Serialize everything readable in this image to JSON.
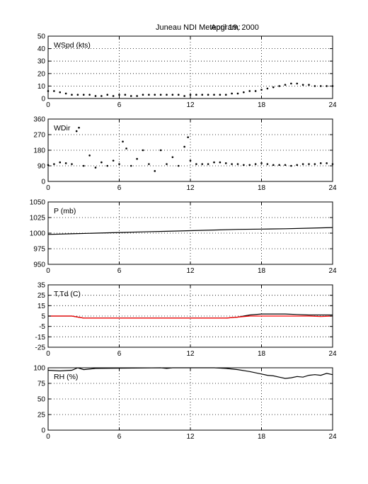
{
  "figure": {
    "title": "Juneau NDI Meteogram:",
    "date": "April 19, 2000"
  },
  "chart_data": [
    {
      "type": "scatter",
      "label": "WSpd (kts)",
      "xlim": [
        0,
        24
      ],
      "ylim": [
        0,
        50
      ],
      "x_ticks": [
        0,
        6,
        12,
        18,
        24
      ],
      "y_ticks": [
        0,
        10,
        20,
        30,
        40,
        50
      ],
      "grid": true,
      "series": [
        {
          "color": "#000000",
          "x": [
            0,
            0.5,
            1,
            1.5,
            2,
            2.5,
            3,
            3.5,
            4,
            4.5,
            5,
            5.5,
            6,
            6.5,
            7,
            7.5,
            8,
            8.5,
            9,
            9.5,
            10,
            10.5,
            11,
            11.5,
            12,
            12.5,
            13,
            13.5,
            14,
            14.5,
            15,
            15.5,
            16,
            16.5,
            17,
            17.5,
            18,
            18.5,
            19,
            19.5,
            20,
            20.5,
            21,
            21.5,
            22,
            22.5,
            23,
            23.5,
            24
          ],
          "y": [
            6,
            6,
            5,
            4,
            3,
            3,
            3,
            3,
            2,
            2,
            3,
            2,
            3,
            3,
            2,
            2,
            3,
            3,
            3,
            3,
            3,
            3,
            3,
            2,
            3,
            3,
            3,
            3,
            3,
            3,
            3,
            4,
            4,
            5,
            6,
            6,
            7,
            8,
            9,
            10,
            11,
            12,
            12,
            11,
            11,
            10,
            10,
            10,
            10
          ]
        }
      ]
    },
    {
      "type": "scatter",
      "label": "WDir",
      "xlim": [
        0,
        24
      ],
      "ylim": [
        0,
        360
      ],
      "x_ticks": [
        0,
        6,
        12,
        18,
        24
      ],
      "y_ticks": [
        0,
        90,
        180,
        270,
        360
      ],
      "grid": true,
      "series": [
        {
          "color": "#000000",
          "x": [
            0,
            0.5,
            1,
            1.5,
            2,
            2.4,
            2.6,
            3,
            3.5,
            4,
            4.5,
            5,
            5.5,
            6,
            6.3,
            6.6,
            7,
            7.5,
            8,
            8.5,
            9,
            9.5,
            10,
            10.5,
            11,
            11.5,
            11.8,
            12,
            12.5,
            13,
            13.5,
            14,
            14.5,
            15,
            15.5,
            16,
            16.5,
            17,
            17.5,
            18,
            18.5,
            19,
            19.5,
            20,
            20.5,
            21,
            21.5,
            22,
            22.5,
            23,
            23.5,
            24
          ],
          "y": [
            95,
            100,
            110,
            105,
            100,
            290,
            310,
            90,
            150,
            80,
            110,
            90,
            120,
            100,
            230,
            190,
            90,
            130,
            180,
            100,
            60,
            180,
            100,
            140,
            90,
            200,
            255,
            120,
            100,
            100,
            100,
            110,
            110,
            105,
            100,
            100,
            95,
            95,
            100,
            105,
            100,
            95,
            95,
            95,
            90,
            95,
            100,
            100,
            100,
            105,
            105,
            100
          ]
        }
      ]
    },
    {
      "type": "line",
      "label": "P (mb)",
      "xlim": [
        0,
        24
      ],
      "ylim": [
        950,
        1050
      ],
      "x_ticks": [
        0,
        6,
        12,
        18,
        24
      ],
      "y_ticks": [
        950,
        975,
        1000,
        1025,
        1050
      ],
      "grid": true,
      "series": [
        {
          "color": "#000000",
          "x": [
            0,
            2,
            4,
            6,
            8,
            10,
            12,
            14,
            16,
            18,
            20,
            22,
            24
          ],
          "y": [
            998,
            999,
            1000,
            1001,
            1002,
            1003,
            1004,
            1005,
            1006,
            1006.5,
            1007,
            1008,
            1009
          ]
        }
      ]
    },
    {
      "type": "line",
      "label": "T,Td (C)",
      "xlim": [
        0,
        24
      ],
      "ylim": [
        -25,
        35
      ],
      "x_ticks": [
        0,
        6,
        12,
        18,
        24
      ],
      "y_ticks": [
        -25,
        -15,
        -5,
        5,
        15,
        25,
        35
      ],
      "grid": true,
      "series": [
        {
          "color": "#000000",
          "x": [
            0,
            1,
            2,
            3,
            4,
            6,
            8,
            10,
            12,
            14,
            15,
            16,
            17,
            18,
            19,
            20,
            21,
            22,
            23,
            24
          ],
          "y": [
            5,
            5,
            5,
            3,
            3,
            3,
            3,
            3,
            3,
            3,
            3,
            4,
            6,
            7,
            7,
            7,
            6.5,
            6,
            6,
            6
          ]
        },
        {
          "color": "#ff0000",
          "x": [
            0,
            1,
            2,
            3,
            4,
            6,
            8,
            10,
            12,
            14,
            15,
            16,
            17,
            18,
            19,
            20,
            21,
            22,
            23,
            24
          ],
          "y": [
            5,
            5,
            5,
            3,
            3,
            3,
            3,
            3,
            3,
            3,
            3,
            4,
            5,
            5,
            5,
            5,
            5,
            5,
            4.5,
            5
          ]
        }
      ]
    },
    {
      "type": "line",
      "label": "RH (%)",
      "xlim": [
        0,
        24
      ],
      "ylim": [
        0,
        100
      ],
      "x_ticks": [
        0,
        6,
        12,
        18,
        24
      ],
      "y_ticks": [
        0,
        25,
        50,
        75,
        100
      ],
      "grid": true,
      "series": [
        {
          "color": "#000000",
          "x": [
            0,
            1,
            2,
            2.5,
            3,
            4,
            9.5,
            10,
            10.5,
            12,
            14,
            15,
            16,
            17,
            18,
            18.5,
            19,
            19.5,
            20,
            20.5,
            21,
            21.5,
            22,
            22.5,
            23,
            23.5,
            24
          ],
          "y": [
            96,
            95,
            96,
            100,
            97,
            99,
            100,
            99,
            100,
            100,
            100,
            99,
            97,
            94,
            90,
            88,
            87,
            85,
            83,
            84,
            86,
            85,
            88,
            89,
            88,
            91,
            89
          ]
        }
      ]
    }
  ]
}
